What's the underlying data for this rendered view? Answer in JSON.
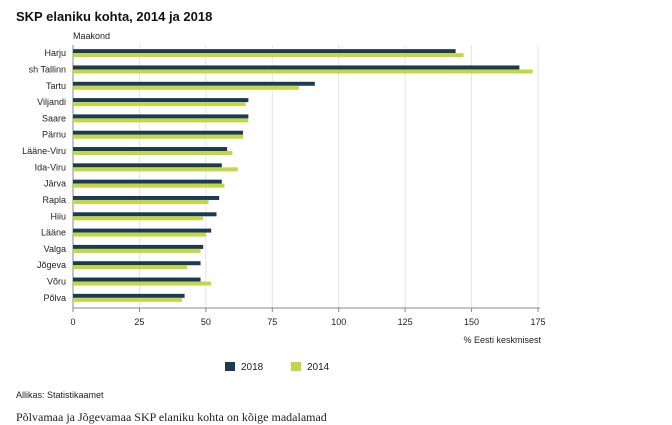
{
  "title": "SKP elaniku kohta, 2014 ja 2018",
  "y_axis_caption": "Maakond",
  "source": "Allikas: Statistikaamet",
  "cutoff_text": "Põlvamaa ja Jõgevamaa SKP elaniku kohta on kõige madalamad",
  "chart_data": {
    "type": "bar",
    "orientation": "horizontal",
    "title": "SKP elaniku kohta, 2014 ja 2018",
    "ylabel": "Maakond",
    "xlabel": "% Eesti keskmisest",
    "xlim": [
      0,
      175
    ],
    "xticks": [
      0,
      25,
      50,
      75,
      100,
      125,
      150,
      175
    ],
    "grid": true,
    "legend_position": "bottom",
    "categories": [
      "Harju",
      "sh Tallinn",
      "Tartu",
      "Viljandi",
      "Saare",
      "Pärnu",
      "Lääne-Viru",
      "Ida-Viru",
      "Järva",
      "Rapla",
      "Hiiu",
      "Lääne",
      "Valga",
      "Jõgeva",
      "Võru",
      "Põlva"
    ],
    "series": [
      {
        "name": "2018",
        "color": "#1d3a52",
        "values": [
          144,
          168,
          91,
          66,
          66,
          64,
          58,
          56,
          56,
          55,
          54,
          52,
          49,
          48,
          48,
          42
        ]
      },
      {
        "name": "2014",
        "color": "#c2d743",
        "values": [
          147,
          173,
          85,
          65,
          66,
          64,
          60,
          62,
          57,
          51,
          49,
          50,
          48,
          43,
          52,
          41
        ]
      }
    ]
  }
}
